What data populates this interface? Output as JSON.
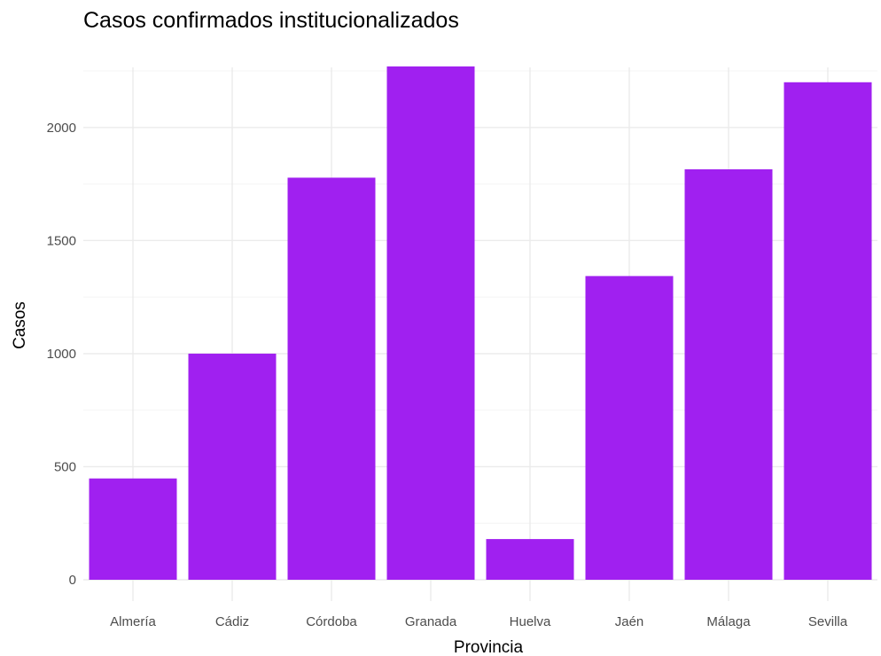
{
  "chart_data": {
    "type": "bar",
    "title": "Casos confirmados institucionalizados",
    "xlabel": "Provincia",
    "ylabel": "Casos",
    "categories": [
      "Almería",
      "Cádiz",
      "Córdoba",
      "Granada",
      "Huelva",
      "Jaén",
      "Málaga",
      "Sevilla"
    ],
    "values": [
      448,
      1000,
      1778,
      2270,
      180,
      1343,
      1815,
      2200
    ],
    "ylim": [
      0,
      2270
    ],
    "yticks": [
      0,
      500,
      1000,
      1500,
      2000
    ],
    "ytick_labels": [
      "0",
      "500",
      "1000",
      "1500",
      "2000"
    ],
    "grid": true,
    "legend": "none",
    "bar_color": "#a020f0"
  }
}
